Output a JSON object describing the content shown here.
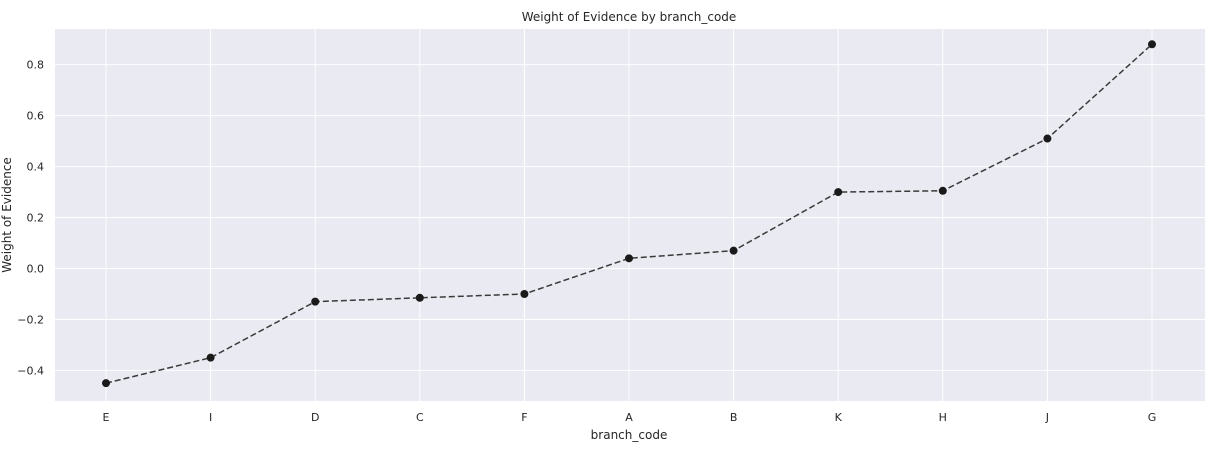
{
  "chart_data": {
    "type": "line",
    "title": "Weight of Evidence by branch_code",
    "xlabel": "branch_code",
    "ylabel": "Weight of Evidence",
    "categories": [
      "E",
      "I",
      "D",
      "C",
      "F",
      "A",
      "B",
      "K",
      "H",
      "J",
      "G"
    ],
    "series": [
      {
        "values": [
          -0.45,
          -0.35,
          -0.13,
          -0.115,
          -0.1,
          0.04,
          0.07,
          0.3,
          0.305,
          0.51,
          0.88
        ]
      }
    ],
    "ylim": [
      -0.52,
      0.94
    ],
    "yticks": [
      -0.4,
      -0.2,
      0.0,
      0.2,
      0.4,
      0.6,
      0.8
    ],
    "ytick_labels": [
      "−0.4",
      "−0.2",
      "0.0",
      "0.2",
      "0.4",
      "0.6",
      "0.8"
    ],
    "grid": true,
    "line_style": "dashed",
    "marker": "circle",
    "colors": {
      "plot_background": "#eaeaf2",
      "grid": "#ffffff",
      "line": "#3a3a3a",
      "marker": "#1a1a1a",
      "text": "#262626"
    }
  }
}
